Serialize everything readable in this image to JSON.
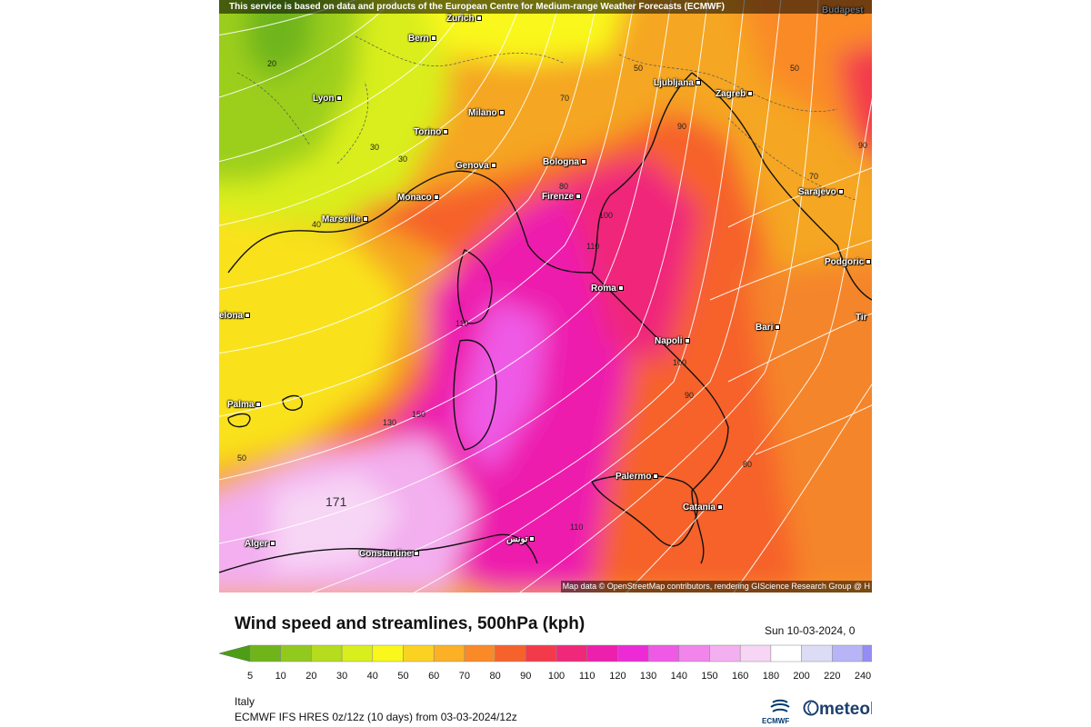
{
  "banner": "This service is based on data and products of the European Centre for Medium-range Weather Forecasts (ECMWF)",
  "attribution": "Map data © OpenStreetMap contributors, rendering GIScience Research Group @ H",
  "title": "Wind speed and streamlines, 500hPa (kph)",
  "date": "Sun 10-03-2024, 0",
  "region": "Italy",
  "model": "ECMWF IFS HRES 0z/12z (10 days) from  03-03-2024/12z",
  "logos": {
    "ecmwf": "ECMWF",
    "meteo": "meteol"
  },
  "cities": [
    {
      "name": "Bern"
    },
    {
      "name": "Zurich"
    },
    {
      "name": "Budapest"
    },
    {
      "name": "Lyon"
    },
    {
      "name": "Milano"
    },
    {
      "name": "Torino"
    },
    {
      "name": "Ljubljana"
    },
    {
      "name": "Zagreb"
    },
    {
      "name": "Genova"
    },
    {
      "name": "Bologna"
    },
    {
      "name": "Monaco"
    },
    {
      "name": "Marseille"
    },
    {
      "name": "Firenze"
    },
    {
      "name": "Sarajevo"
    },
    {
      "name": "Podgoric"
    },
    {
      "name": "Roma"
    },
    {
      "name": "elona"
    },
    {
      "name": "Bari"
    },
    {
      "name": "Tir"
    },
    {
      "name": "Napoli"
    },
    {
      "name": "Palma"
    },
    {
      "name": "Palermo"
    },
    {
      "name": "Catania"
    },
    {
      "name": "Alger"
    },
    {
      "name": "Constantine"
    },
    {
      "name": "تونس"
    }
  ],
  "contour_labels": [
    "20",
    "30",
    "30",
    "40",
    "50",
    "70",
    "50",
    "90",
    "80",
    "100",
    "110",
    "110",
    "100",
    "90",
    "80",
    "70",
    "90",
    "130",
    "150",
    "50",
    "110",
    "171"
  ],
  "legend": {
    "values": [
      "5",
      "10",
      "20",
      "30",
      "40",
      "50",
      "60",
      "70",
      "80",
      "90",
      "100",
      "110",
      "120",
      "130",
      "140",
      "150",
      "160",
      "180",
      "200",
      "220",
      "240"
    ],
    "colors": [
      "#4c9e16",
      "#6fb51a",
      "#92c91e",
      "#b5dc1f",
      "#d9ee1d",
      "#f9f71c",
      "#fbd221",
      "#fbb025",
      "#fa8a28",
      "#f6622b",
      "#f33a4b",
      "#f0287a",
      "#ed1fad",
      "#ec2bd7",
      "#ee5ae5",
      "#f185ec",
      "#f3afef",
      "#f7d5f5",
      "#ffffff",
      "#dcdcf6",
      "#b7b5f7",
      "#948df6"
    ]
  }
}
